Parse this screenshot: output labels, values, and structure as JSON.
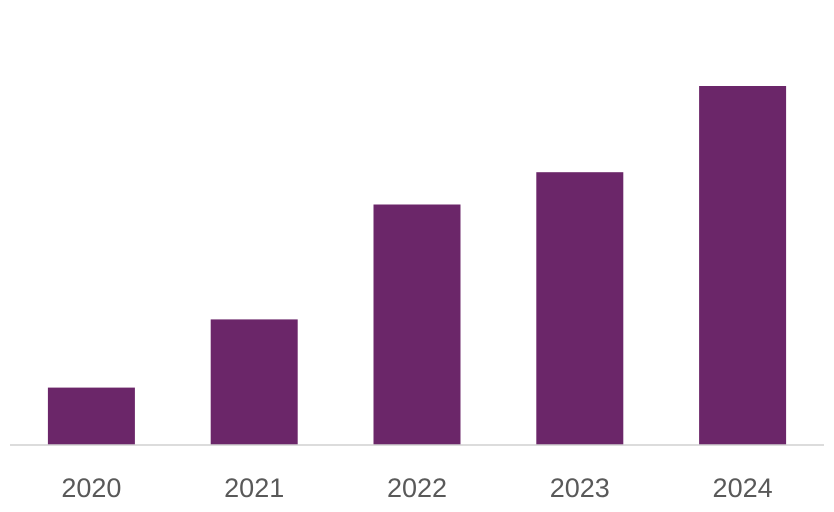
{
  "colors": {
    "bar": "#6b2669",
    "axis": "#d0d0d0",
    "tick_text": "#595959",
    "background": "#ffffff"
  },
  "chart_data": {
    "type": "bar",
    "title": "",
    "xlabel": "",
    "ylabel": "",
    "categories": [
      "2020",
      "2021",
      "2022",
      "2023",
      "2024"
    ],
    "values": [
      16,
      35,
      67,
      76,
      100
    ],
    "ylim": [
      0,
      100
    ],
    "grid": false,
    "legend": "none",
    "y_axis_visible": false
  }
}
